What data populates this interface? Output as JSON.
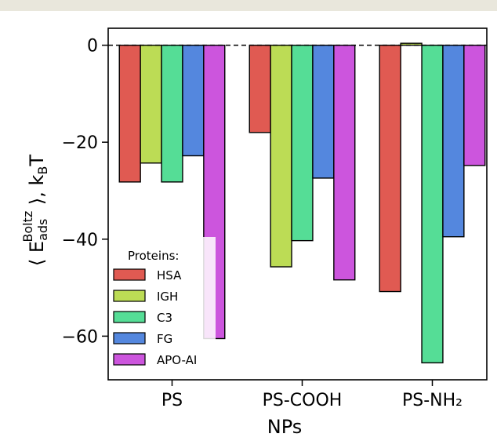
{
  "chart_data": {
    "type": "bar",
    "categories": [
      "PS",
      "PS-COOH",
      "PS-NH₂"
    ],
    "series": [
      {
        "name": "HSA",
        "color": "#e05a52",
        "values": [
          -28.2,
          -18.0,
          -50.8
        ]
      },
      {
        "name": "IGH",
        "color": "#bcdc55",
        "values": [
          -24.3,
          -45.7,
          0.4
        ]
      },
      {
        "name": "C3",
        "color": "#55dd96",
        "values": [
          -28.2,
          -40.3,
          -65.5
        ]
      },
      {
        "name": "FG",
        "color": "#5487de",
        "values": [
          -22.8,
          -27.4,
          -39.5
        ]
      },
      {
        "name": "APO-AI",
        "color": "#cc55dd",
        "values": [
          -60.5,
          -48.4,
          -24.8
        ]
      }
    ],
    "xlabel": "NPs",
    "ylabel": "⟨ E_ads^Boltz ⟩, k_B T",
    "ylabel_parts": {
      "open": "⟨ E",
      "sub": "ads",
      "sup": "Boltz",
      "mid": " ⟩, k",
      "sub2": "B",
      "end": "T"
    },
    "ylim": [
      -69,
      3.5
    ],
    "yticks": [
      0,
      -20,
      -40,
      -60
    ],
    "ytick_labels": [
      "0",
      "−20",
      "−40",
      "−60"
    ],
    "reference_line": 0,
    "legend": {
      "title": "Proteins:",
      "placement": "lower-left"
    },
    "grid": false
  },
  "frame": {
    "top_band_color": "#e9e7dc"
  }
}
